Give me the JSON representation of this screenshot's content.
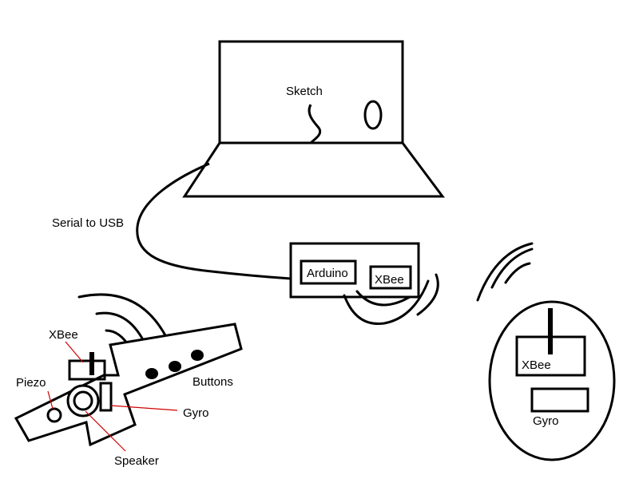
{
  "diagram": {
    "laptop": {
      "screen_label": "Sketch"
    },
    "cable_label": "Serial to USB",
    "base_station": {
      "arduino_label": "Arduino",
      "xbee_label": "XBee"
    },
    "remote_unit": {
      "xbee_label": "XBee",
      "gyro_label": "Gyro"
    },
    "instrument": {
      "xbee_label": "XBee",
      "piezo_label": "Piezo",
      "buttons_label": "Buttons",
      "gyro_label": "Gyro",
      "speaker_label": "Speaker"
    },
    "colors": {
      "stroke": "#000000",
      "leader": "#d00000",
      "background": "#ffffff"
    }
  }
}
